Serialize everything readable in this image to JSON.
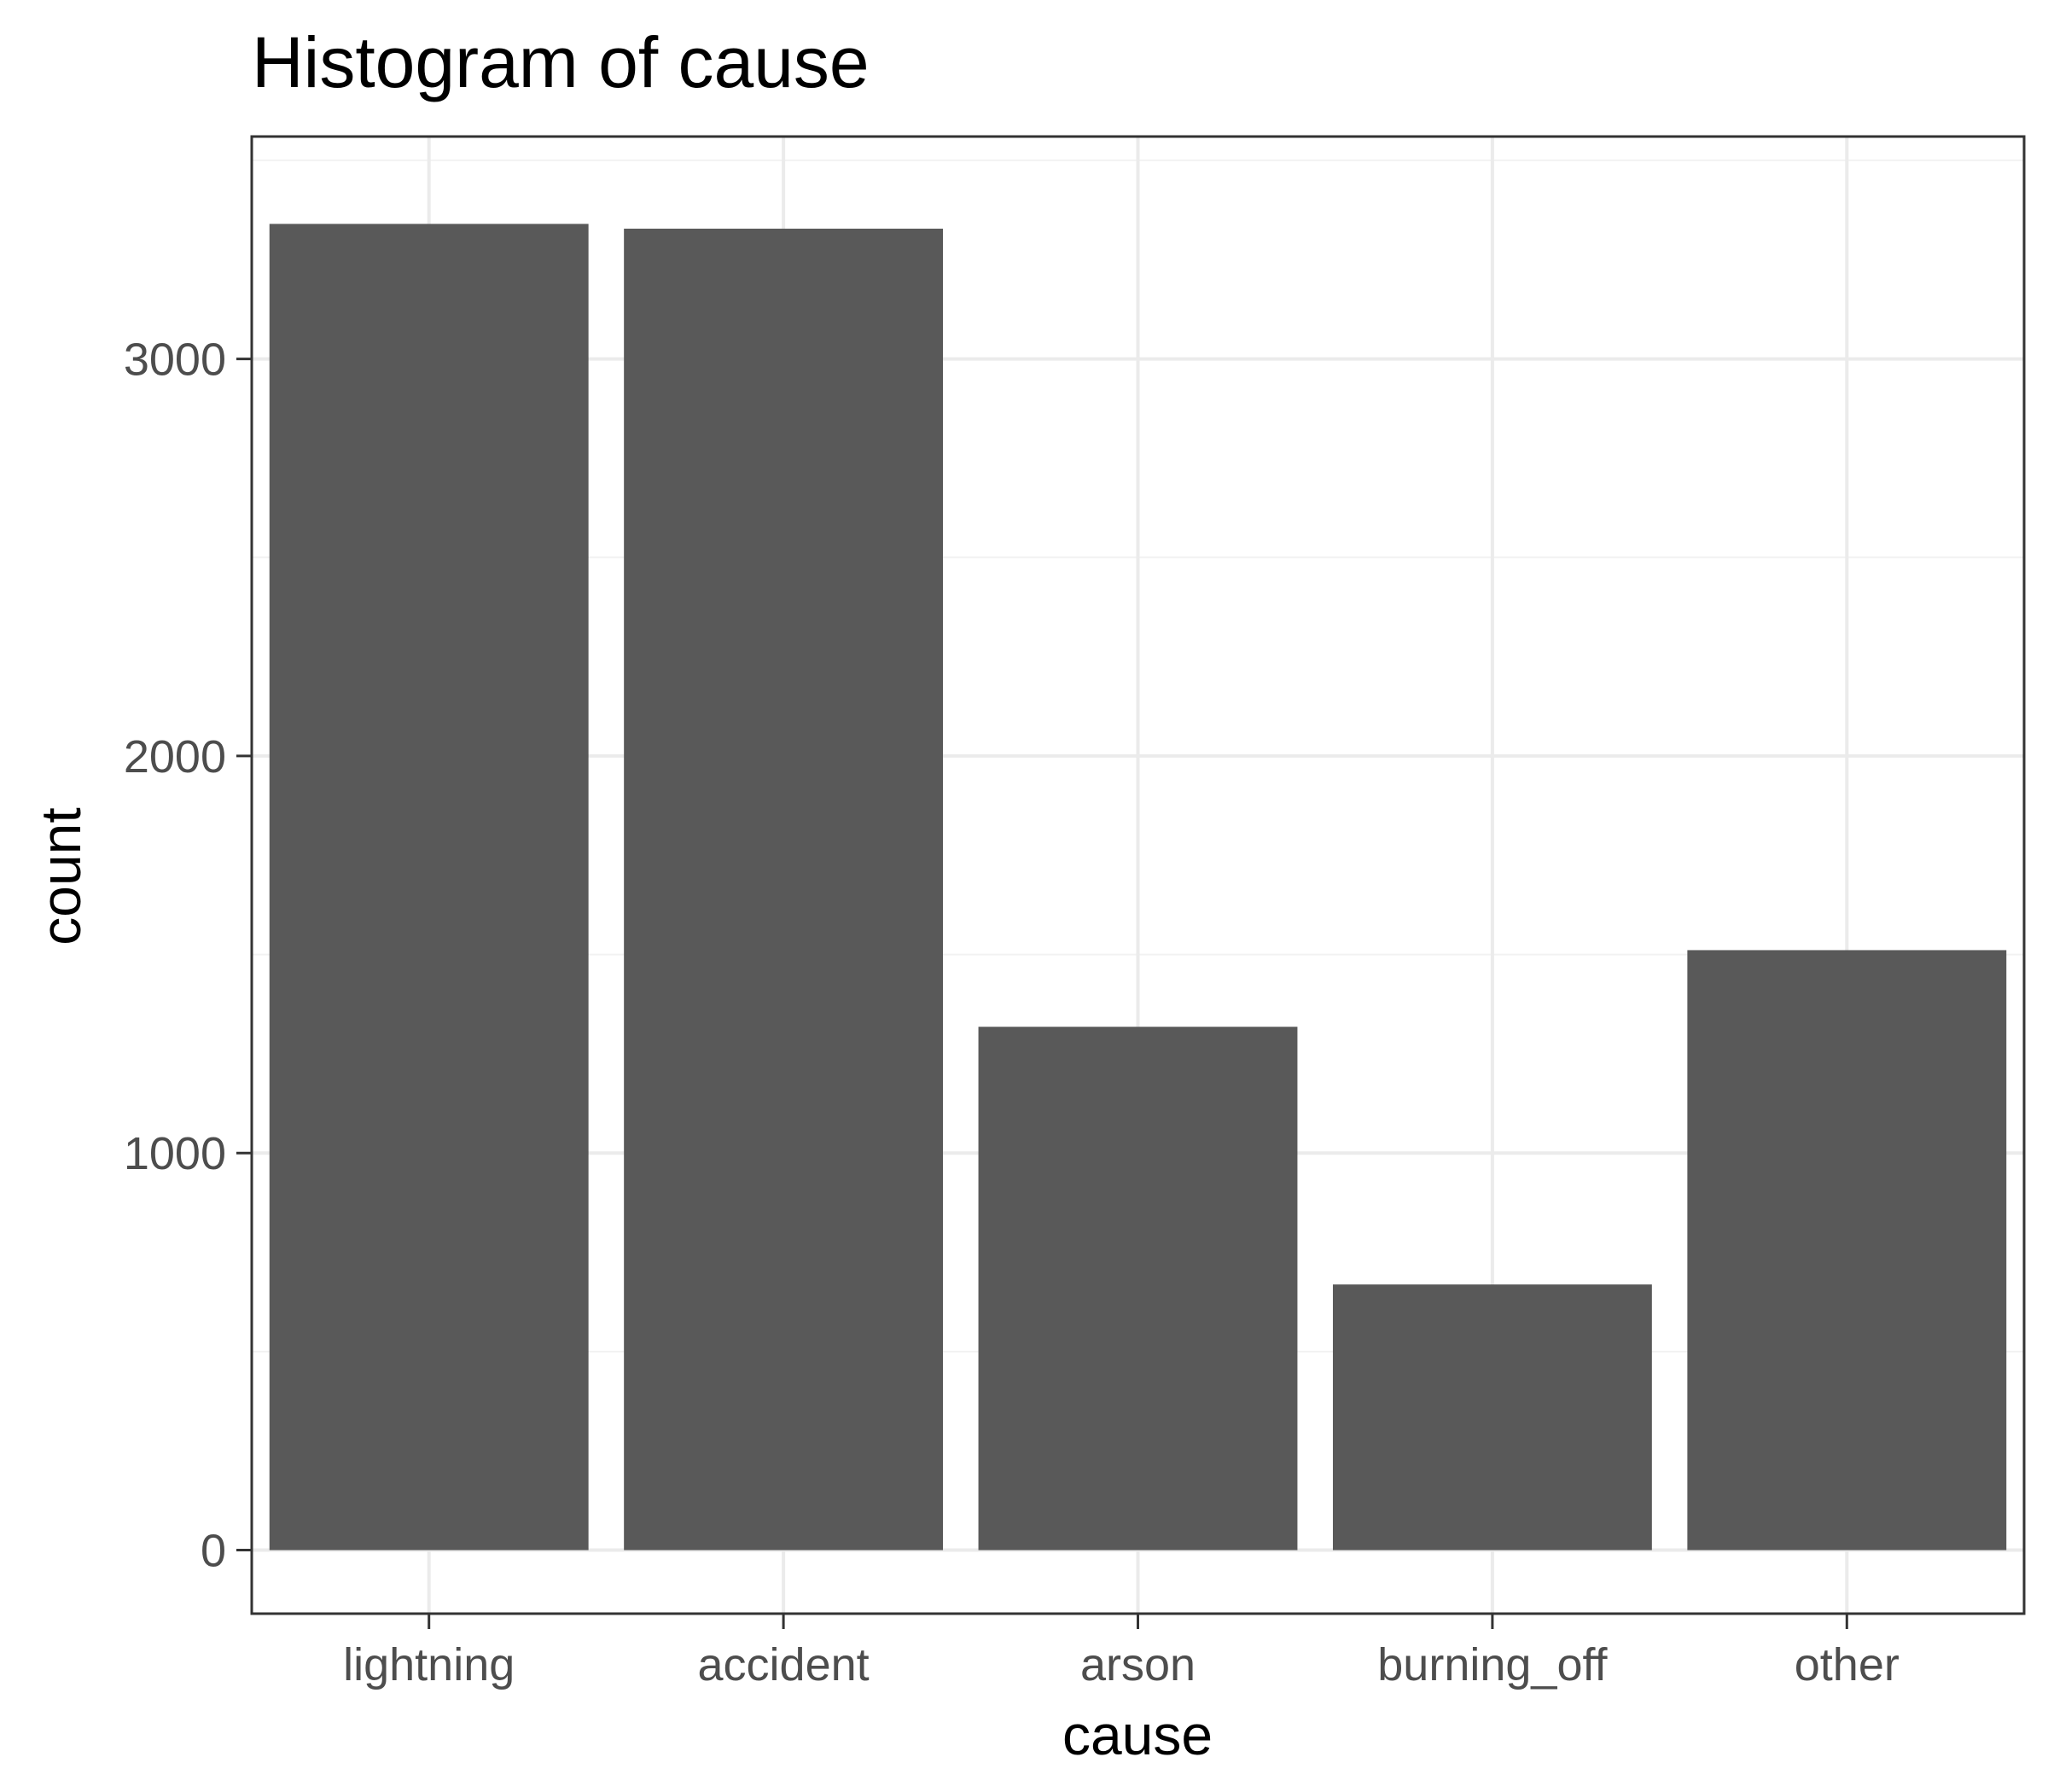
{
  "chart_data": {
    "type": "bar",
    "title": "Histogram of cause",
    "xlabel": "cause",
    "ylabel": "count",
    "categories": [
      "lightning",
      "accident",
      "arson",
      "burning_off",
      "other"
    ],
    "values": [
      3340,
      3328,
      1318,
      669,
      1511
    ],
    "ylim": [
      -160,
      3560
    ],
    "yticks": [
      0,
      1000,
      2000,
      3000
    ],
    "y_minor_ticks": [
      500,
      1500,
      2500,
      3500
    ],
    "grid": true,
    "legend": "none",
    "colors": {
      "bar": "#595959",
      "panel_border": "#333333",
      "grid_major": "#ebebeb",
      "grid_minor": "#f2f2f2",
      "tick": "#333333",
      "background": "#ffffff"
    }
  }
}
